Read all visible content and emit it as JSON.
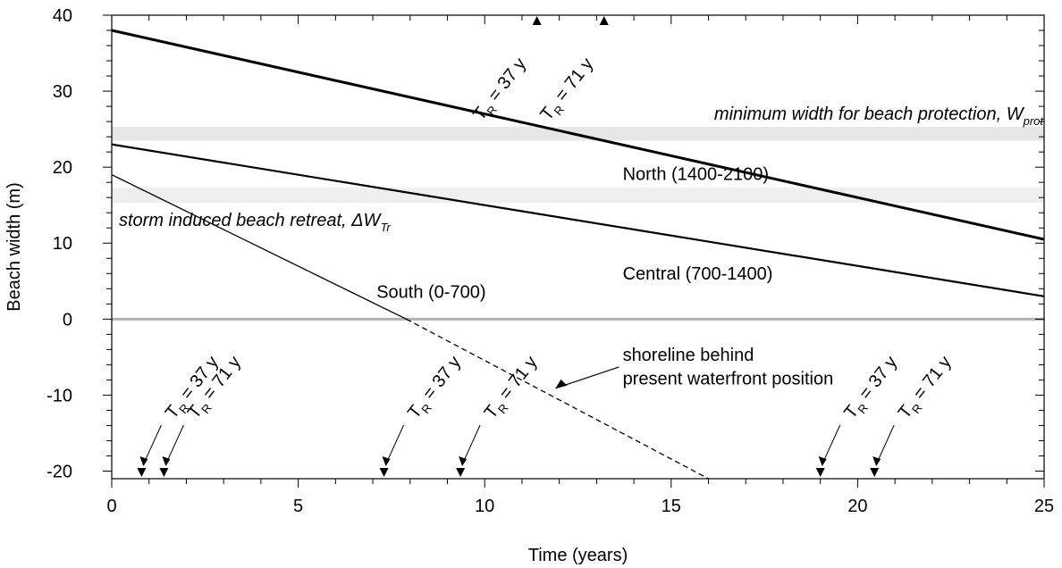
{
  "chart_data": {
    "type": "line",
    "xlabel": "Time (years)",
    "ylabel": "Beach width (m)",
    "xlim": [
      0,
      25
    ],
    "ylim": [
      -21,
      40
    ],
    "xticks": [
      0,
      5,
      10,
      15,
      20,
      25
    ],
    "yticks": [
      -20,
      -10,
      0,
      10,
      20,
      30,
      40
    ],
    "x_minor_step": 1,
    "y_minor_step": 2,
    "grid": false,
    "series": [
      {
        "name": "North (1400-2100)",
        "x": [
          0,
          25
        ],
        "y": [
          38,
          10.5
        ],
        "style": "solid",
        "weight": "thick"
      },
      {
        "name": "Central (700-1400)",
        "x": [
          0,
          25
        ],
        "y": [
          23,
          3
        ],
        "style": "solid",
        "weight": "medium"
      },
      {
        "name": "South (0-700)",
        "x": [
          0,
          7.9
        ],
        "y": [
          19,
          0
        ],
        "style": "solid",
        "weight": "thin"
      },
      {
        "name": "",
        "x": [
          7.9,
          16
        ],
        "y": [
          0,
          -21
        ],
        "style": "dashed",
        "weight": "thin"
      }
    ],
    "bands": [
      {
        "y_from": 23.5,
        "y_to": 25.3,
        "label_main": "minimum width for beach protection, W",
        "label_sub": "prot"
      },
      {
        "y_from": 15.3,
        "y_to": 17.3,
        "label_main": "storm induced beach retreat, ΔW",
        "label_sub": "Tr"
      }
    ],
    "zero_line": 0,
    "markers_top": [
      {
        "x": 11.4,
        "label_main": "T",
        "label_sub": "R",
        "label_rest": " = 37 y"
      },
      {
        "x": 13.2,
        "label_main": "T",
        "label_sub": "R",
        "label_rest": " = 71 y"
      }
    ],
    "markers_bottom": [
      {
        "x": 0.8,
        "label_main": "T",
        "label_sub": "R",
        "label_rest": " = 37 y"
      },
      {
        "x": 1.4,
        "label_main": "T",
        "label_sub": "R",
        "label_rest": " = 71 y"
      },
      {
        "x": 7.3,
        "label_main": "T",
        "label_sub": "R",
        "label_rest": " = 37 y"
      },
      {
        "x": 9.35,
        "label_main": "T",
        "label_sub": "R",
        "label_rest": " = 71 y"
      },
      {
        "x": 19.0,
        "label_main": "T",
        "label_sub": "R",
        "label_rest": " = 37 y"
      },
      {
        "x": 20.45,
        "label_main": "T",
        "label_sub": "R",
        "label_rest": " = 71 y"
      }
    ],
    "annotations": [
      {
        "text": "North (1400-2100)",
        "x": 13.7,
        "y": 18.3
      },
      {
        "text": "Central (700-1400)",
        "x": 13.7,
        "y": 5.2
      },
      {
        "text": "South (0-700)",
        "x": 7.1,
        "y": 2.8
      },
      {
        "text": "shoreline behind",
        "x": 13.7,
        "y": -5.5
      },
      {
        "text": "present waterfront position",
        "x": 13.7,
        "y": -8.6
      }
    ]
  }
}
